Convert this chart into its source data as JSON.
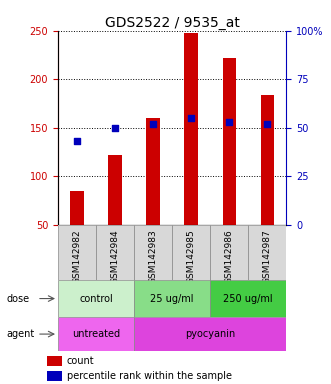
{
  "title": "GDS2522 / 9535_at",
  "samples": [
    "GSM142982",
    "GSM142984",
    "GSM142983",
    "GSM142985",
    "GSM142986",
    "GSM142987"
  ],
  "counts": [
    85,
    122,
    160,
    248,
    222,
    184
  ],
  "percentiles": [
    43,
    50,
    52,
    55,
    53,
    52
  ],
  "left_ylim": [
    50,
    250
  ],
  "right_ylim": [
    0,
    100
  ],
  "left_yticks": [
    50,
    100,
    150,
    200,
    250
  ],
  "right_yticks": [
    0,
    25,
    50,
    75,
    100
  ],
  "right_yticklabels": [
    "0",
    "25",
    "50",
    "75",
    "100%"
  ],
  "bar_color": "#cc0000",
  "dot_color": "#0000bb",
  "dose_groups": [
    {
      "label": "control",
      "start": 0,
      "end": 2,
      "color": "#ccf0cc"
    },
    {
      "label": "25 ug/ml",
      "start": 2,
      "end": 4,
      "color": "#88dd88"
    },
    {
      "label": "250 ug/ml",
      "start": 4,
      "end": 6,
      "color": "#44cc44"
    }
  ],
  "agent_groups": [
    {
      "label": "untreated",
      "start": 0,
      "end": 2,
      "color": "#ee66ee"
    },
    {
      "label": "pyocyanin",
      "start": 2,
      "end": 6,
      "color": "#dd44dd"
    }
  ],
  "dose_label": "dose",
  "agent_label": "agent",
  "legend_count_label": "count",
  "legend_pct_label": "percentile rank within the sample",
  "left_axis_color": "#cc0000",
  "right_axis_color": "#0000bb",
  "title_fontsize": 10,
  "tick_label_fontsize": 7,
  "sample_label_fontsize": 6.5,
  "annot_fontsize": 7,
  "bar_width": 0.35
}
